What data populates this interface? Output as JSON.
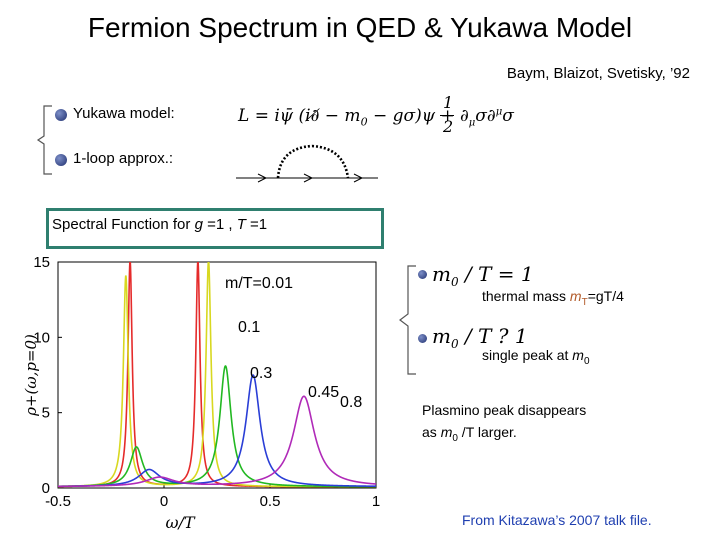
{
  "slide": {
    "title": "Fermion Spectrum in QED & Yukawa Model",
    "reference": "Baym, Blaizot, Svetisky, ’92",
    "bullets": [
      {
        "label": "Yukawa model:"
      },
      {
        "label": "1-loop approx.:"
      }
    ],
    "lagrangian": {
      "lhs": "L = i",
      "mid": "ψ̄ (i∂̸ − m",
      "sub0": "0",
      "rest": " − gσ)ψ +",
      "num": "1",
      "den": "2",
      "tail": "∂",
      "mu": "μ",
      "sig": "σ∂",
      "mu2": "μ",
      "sig2": "σ"
    },
    "spectral_box": {
      "prefix": "Spectral Function for ",
      "g": "g",
      "eq1": " =1 , ",
      "T": "T",
      "eq2": " =1"
    },
    "right": {
      "eq1": {
        "m": "m",
        "sub": "0",
        "rest": " / T =  1"
      },
      "thermal": {
        "pre": "thermal mass ",
        "mT": "m",
        "T": "T",
        "eq": "=gT/4"
      },
      "eq2": {
        "m": "m",
        "sub": "0",
        "rest": " / T ?  1"
      },
      "single": {
        "pre": "single peak at ",
        "m": "m",
        "sub": "0"
      },
      "plasmino1": "Plasmino peak   disappears",
      "plasmino2_pre": "as ",
      "plasmino2_m": "m",
      "plasmino2_sub": "0",
      "plasmino2_post": " /T larger."
    },
    "credit": "From Kitazawa’s 2007 talk file."
  },
  "chart_data": {
    "type": "line",
    "ylabel": "ρ+(ω,p=0)",
    "xlabel": "ω/T",
    "xlim": [
      -0.5,
      1.0
    ],
    "ylim": [
      0,
      15
    ],
    "xticks": [
      "-0.5",
      "0",
      "0.5",
      "1"
    ],
    "yticks": [
      "0",
      "5",
      "10",
      "15"
    ],
    "series_labels": [
      {
        "text": "m/T=0.01"
      },
      {
        "text": "0.1"
      },
      {
        "text": "0.3"
      },
      {
        "text": "0.45"
      },
      {
        "text": "0.8"
      }
    ],
    "series": [
      {
        "color": "#e52b2b",
        "peaks": [
          [
            -0.16,
            15,
            0.012
          ],
          [
            0.16,
            15,
            0.012
          ]
        ]
      },
      {
        "color": "#d8d820",
        "peaks": [
          [
            -0.18,
            14,
            0.014
          ],
          [
            0.21,
            15,
            0.014
          ]
        ]
      },
      {
        "color": "#22b822",
        "peaks": [
          [
            -0.13,
            2.6,
            0.035
          ],
          [
            0.29,
            8.0,
            0.032
          ]
        ]
      },
      {
        "color": "#2a3ed6",
        "peaks": [
          [
            -0.07,
            1.1,
            0.06
          ],
          [
            0.42,
            7.4,
            0.04
          ]
        ]
      },
      {
        "color": "#b02ab8",
        "peaks": [
          [
            -0.02,
            0.6,
            0.08
          ],
          [
            0.66,
            6.0,
            0.06
          ]
        ]
      }
    ]
  }
}
